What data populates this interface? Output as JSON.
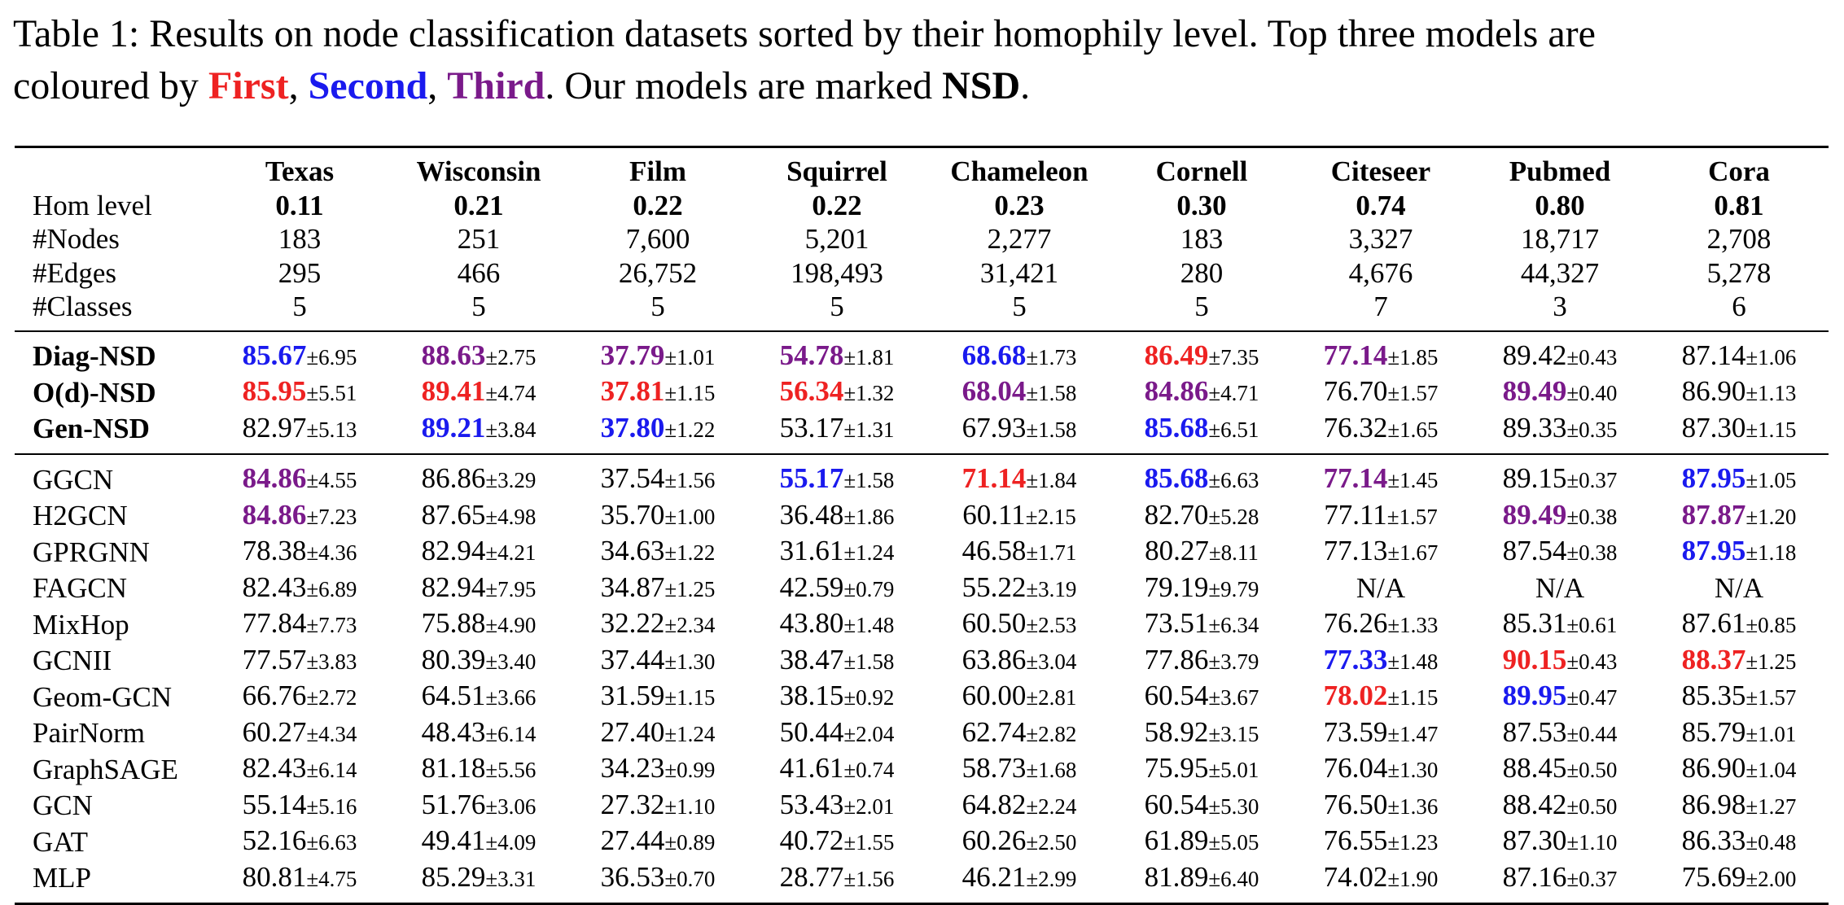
{
  "caption": {
    "line1": "Table 1: Results on node classification datasets sorted by their homophily level. Top three models are",
    "line2_pre": "coloured by ",
    "first": "First",
    "comma1": ", ",
    "second": "Second",
    "comma2": ", ",
    "third": "Third",
    "line2_mid": ". Our models are marked ",
    "nsd": "NSD",
    "line2_end": "."
  },
  "colors": {
    "first": "#ee2222",
    "second": "#1a1aee",
    "third": "#7a1a8a"
  },
  "datasets": [
    "Texas",
    "Wisconsin",
    "Film",
    "Squirrel",
    "Chameleon",
    "Cornell",
    "Citeseer",
    "Pubmed",
    "Cora"
  ],
  "stats": [
    {
      "label": "Hom level",
      "bold": true,
      "values": [
        "0.11",
        "0.21",
        "0.22",
        "0.22",
        "0.23",
        "0.30",
        "0.74",
        "0.80",
        "0.81"
      ]
    },
    {
      "label": "#Nodes",
      "bold": false,
      "values": [
        "183",
        "251",
        "7,600",
        "5,201",
        "2,277",
        "183",
        "3,327",
        "18,717",
        "2,708"
      ]
    },
    {
      "label": "#Edges",
      "bold": false,
      "values": [
        "295",
        "466",
        "26,752",
        "198,493",
        "31,421",
        "280",
        "4,676",
        "44,327",
        "5,278"
      ]
    },
    {
      "label": "#Classes",
      "bold": false,
      "values": [
        "5",
        "5",
        "5",
        "5",
        "5",
        "5",
        "7",
        "3",
        "6"
      ]
    }
  ],
  "nsd_models": [
    {
      "name": "Diag-NSD",
      "cells": [
        {
          "m": "85.67",
          "s": "±6.95",
          "r": "second"
        },
        {
          "m": "88.63",
          "s": "±2.75",
          "r": "third"
        },
        {
          "m": "37.79",
          "s": "±1.01",
          "r": "third"
        },
        {
          "m": "54.78",
          "s": "±1.81",
          "r": "third"
        },
        {
          "m": "68.68",
          "s": "±1.73",
          "r": "second"
        },
        {
          "m": "86.49",
          "s": "±7.35",
          "r": "first"
        },
        {
          "m": "77.14",
          "s": "±1.85",
          "r": "third"
        },
        {
          "m": "89.42",
          "s": "±0.43",
          "r": ""
        },
        {
          "m": "87.14",
          "s": "±1.06",
          "r": ""
        }
      ]
    },
    {
      "name": "O(d)-NSD",
      "cells": [
        {
          "m": "85.95",
          "s": "±5.51",
          "r": "first"
        },
        {
          "m": "89.41",
          "s": "±4.74",
          "r": "first"
        },
        {
          "m": "37.81",
          "s": "±1.15",
          "r": "first"
        },
        {
          "m": "56.34",
          "s": "±1.32",
          "r": "first"
        },
        {
          "m": "68.04",
          "s": "±1.58",
          "r": "third"
        },
        {
          "m": "84.86",
          "s": "±4.71",
          "r": "third"
        },
        {
          "m": "76.70",
          "s": "±1.57",
          "r": ""
        },
        {
          "m": "89.49",
          "s": "±0.40",
          "r": "third"
        },
        {
          "m": "86.90",
          "s": "±1.13",
          "r": ""
        }
      ]
    },
    {
      "name": "Gen-NSD",
      "cells": [
        {
          "m": "82.97",
          "s": "±5.13",
          "r": ""
        },
        {
          "m": "89.21",
          "s": "±3.84",
          "r": "second"
        },
        {
          "m": "37.80",
          "s": "±1.22",
          "r": "second"
        },
        {
          "m": "53.17",
          "s": "±1.31",
          "r": ""
        },
        {
          "m": "67.93",
          "s": "±1.58",
          "r": ""
        },
        {
          "m": "85.68",
          "s": "±6.51",
          "r": "second"
        },
        {
          "m": "76.32",
          "s": "±1.65",
          "r": ""
        },
        {
          "m": "89.33",
          "s": "±0.35",
          "r": ""
        },
        {
          "m": "87.30",
          "s": "±1.15",
          "r": ""
        }
      ]
    }
  ],
  "baselines": [
    {
      "name": "GGCN",
      "cells": [
        {
          "m": "84.86",
          "s": "±4.55",
          "r": "third"
        },
        {
          "m": "86.86",
          "s": "±3.29",
          "r": ""
        },
        {
          "m": "37.54",
          "s": "±1.56",
          "r": ""
        },
        {
          "m": "55.17",
          "s": "±1.58",
          "r": "second"
        },
        {
          "m": "71.14",
          "s": "±1.84",
          "r": "first"
        },
        {
          "m": "85.68",
          "s": "±6.63",
          "r": "second"
        },
        {
          "m": "77.14",
          "s": "±1.45",
          "r": "third"
        },
        {
          "m": "89.15",
          "s": "±0.37",
          "r": ""
        },
        {
          "m": "87.95",
          "s": "±1.05",
          "r": "second"
        }
      ]
    },
    {
      "name": "H2GCN",
      "cells": [
        {
          "m": "84.86",
          "s": "±7.23",
          "r": "third"
        },
        {
          "m": "87.65",
          "s": "±4.98",
          "r": ""
        },
        {
          "m": "35.70",
          "s": "±1.00",
          "r": ""
        },
        {
          "m": "36.48",
          "s": "±1.86",
          "r": ""
        },
        {
          "m": "60.11",
          "s": "±2.15",
          "r": ""
        },
        {
          "m": "82.70",
          "s": "±5.28",
          "r": ""
        },
        {
          "m": "77.11",
          "s": "±1.57",
          "r": ""
        },
        {
          "m": "89.49",
          "s": "±0.38",
          "r": "third"
        },
        {
          "m": "87.87",
          "s": "±1.20",
          "r": "third"
        }
      ]
    },
    {
      "name": "GPRGNN",
      "cells": [
        {
          "m": "78.38",
          "s": "±4.36",
          "r": ""
        },
        {
          "m": "82.94",
          "s": "±4.21",
          "r": ""
        },
        {
          "m": "34.63",
          "s": "±1.22",
          "r": ""
        },
        {
          "m": "31.61",
          "s": "±1.24",
          "r": ""
        },
        {
          "m": "46.58",
          "s": "±1.71",
          "r": ""
        },
        {
          "m": "80.27",
          "s": "±8.11",
          "r": ""
        },
        {
          "m": "77.13",
          "s": "±1.67",
          "r": ""
        },
        {
          "m": "87.54",
          "s": "±0.38",
          "r": ""
        },
        {
          "m": "87.95",
          "s": "±1.18",
          "r": "second"
        }
      ]
    },
    {
      "name": "FAGCN",
      "cells": [
        {
          "m": "82.43",
          "s": "±6.89",
          "r": ""
        },
        {
          "m": "82.94",
          "s": "±7.95",
          "r": ""
        },
        {
          "m": "34.87",
          "s": "±1.25",
          "r": ""
        },
        {
          "m": "42.59",
          "s": "±0.79",
          "r": ""
        },
        {
          "m": "55.22",
          "s": "±3.19",
          "r": ""
        },
        {
          "m": "79.19",
          "s": "±9.79",
          "r": ""
        },
        {
          "m": "N/A",
          "s": "",
          "r": ""
        },
        {
          "m": "N/A",
          "s": "",
          "r": ""
        },
        {
          "m": "N/A",
          "s": "",
          "r": ""
        }
      ]
    },
    {
      "name": "MixHop",
      "cells": [
        {
          "m": "77.84",
          "s": "±7.73",
          "r": ""
        },
        {
          "m": "75.88",
          "s": "±4.90",
          "r": ""
        },
        {
          "m": "32.22",
          "s": "±2.34",
          "r": ""
        },
        {
          "m": "43.80",
          "s": "±1.48",
          "r": ""
        },
        {
          "m": "60.50",
          "s": "±2.53",
          "r": ""
        },
        {
          "m": "73.51",
          "s": "±6.34",
          "r": ""
        },
        {
          "m": "76.26",
          "s": "±1.33",
          "r": ""
        },
        {
          "m": "85.31",
          "s": "±0.61",
          "r": ""
        },
        {
          "m": "87.61",
          "s": "±0.85",
          "r": ""
        }
      ]
    },
    {
      "name": "GCNII",
      "cells": [
        {
          "m": "77.57",
          "s": "±3.83",
          "r": ""
        },
        {
          "m": "80.39",
          "s": "±3.40",
          "r": ""
        },
        {
          "m": "37.44",
          "s": "±1.30",
          "r": ""
        },
        {
          "m": "38.47",
          "s": "±1.58",
          "r": ""
        },
        {
          "m": "63.86",
          "s": "±3.04",
          "r": ""
        },
        {
          "m": "77.86",
          "s": "±3.79",
          "r": ""
        },
        {
          "m": "77.33",
          "s": "±1.48",
          "r": "second"
        },
        {
          "m": "90.15",
          "s": "±0.43",
          "r": "first"
        },
        {
          "m": "88.37",
          "s": "±1.25",
          "r": "first"
        }
      ]
    },
    {
      "name": "Geom-GCN",
      "cells": [
        {
          "m": "66.76",
          "s": "±2.72",
          "r": ""
        },
        {
          "m": "64.51",
          "s": "±3.66",
          "r": ""
        },
        {
          "m": "31.59",
          "s": "±1.15",
          "r": ""
        },
        {
          "m": "38.15",
          "s": "±0.92",
          "r": ""
        },
        {
          "m": "60.00",
          "s": "±2.81",
          "r": ""
        },
        {
          "m": "60.54",
          "s": "±3.67",
          "r": ""
        },
        {
          "m": "78.02",
          "s": "±1.15",
          "r": "first"
        },
        {
          "m": "89.95",
          "s": "±0.47",
          "r": "second"
        },
        {
          "m": "85.35",
          "s": "±1.57",
          "r": ""
        }
      ]
    },
    {
      "name": "PairNorm",
      "cells": [
        {
          "m": "60.27",
          "s": "±4.34",
          "r": ""
        },
        {
          "m": "48.43",
          "s": "±6.14",
          "r": ""
        },
        {
          "m": "27.40",
          "s": "±1.24",
          "r": ""
        },
        {
          "m": "50.44",
          "s": "±2.04",
          "r": ""
        },
        {
          "m": "62.74",
          "s": "±2.82",
          "r": ""
        },
        {
          "m": "58.92",
          "s": "±3.15",
          "r": ""
        },
        {
          "m": "73.59",
          "s": "±1.47",
          "r": ""
        },
        {
          "m": "87.53",
          "s": "±0.44",
          "r": ""
        },
        {
          "m": "85.79",
          "s": "±1.01",
          "r": ""
        }
      ]
    },
    {
      "name": "GraphSAGE",
      "cells": [
        {
          "m": "82.43",
          "s": "±6.14",
          "r": ""
        },
        {
          "m": "81.18",
          "s": "±5.56",
          "r": ""
        },
        {
          "m": "34.23",
          "s": "±0.99",
          "r": ""
        },
        {
          "m": "41.61",
          "s": "±0.74",
          "r": ""
        },
        {
          "m": "58.73",
          "s": "±1.68",
          "r": ""
        },
        {
          "m": "75.95",
          "s": "±5.01",
          "r": ""
        },
        {
          "m": "76.04",
          "s": "±1.30",
          "r": ""
        },
        {
          "m": "88.45",
          "s": "±0.50",
          "r": ""
        },
        {
          "m": "86.90",
          "s": "±1.04",
          "r": ""
        }
      ]
    },
    {
      "name": "GCN",
      "cells": [
        {
          "m": "55.14",
          "s": "±5.16",
          "r": ""
        },
        {
          "m": "51.76",
          "s": "±3.06",
          "r": ""
        },
        {
          "m": "27.32",
          "s": "±1.10",
          "r": ""
        },
        {
          "m": "53.43",
          "s": "±2.01",
          "r": ""
        },
        {
          "m": "64.82",
          "s": "±2.24",
          "r": ""
        },
        {
          "m": "60.54",
          "s": "±5.30",
          "r": ""
        },
        {
          "m": "76.50",
          "s": "±1.36",
          "r": ""
        },
        {
          "m": "88.42",
          "s": "±0.50",
          "r": ""
        },
        {
          "m": "86.98",
          "s": "±1.27",
          "r": ""
        }
      ]
    },
    {
      "name": "GAT",
      "cells": [
        {
          "m": "52.16",
          "s": "±6.63",
          "r": ""
        },
        {
          "m": "49.41",
          "s": "±4.09",
          "r": ""
        },
        {
          "m": "27.44",
          "s": "±0.89",
          "r": ""
        },
        {
          "m": "40.72",
          "s": "±1.55",
          "r": ""
        },
        {
          "m": "60.26",
          "s": "±2.50",
          "r": ""
        },
        {
          "m": "61.89",
          "s": "±5.05",
          "r": ""
        },
        {
          "m": "76.55",
          "s": "±1.23",
          "r": ""
        },
        {
          "m": "87.30",
          "s": "±1.10",
          "r": ""
        },
        {
          "m": "86.33",
          "s": "±0.48",
          "r": ""
        }
      ]
    },
    {
      "name": "MLP",
      "cells": [
        {
          "m": "80.81",
          "s": "±4.75",
          "r": ""
        },
        {
          "m": "85.29",
          "s": "±3.31",
          "r": ""
        },
        {
          "m": "36.53",
          "s": "±0.70",
          "r": ""
        },
        {
          "m": "28.77",
          "s": "±1.56",
          "r": ""
        },
        {
          "m": "46.21",
          "s": "±2.99",
          "r": ""
        },
        {
          "m": "81.89",
          "s": "±6.40",
          "r": ""
        },
        {
          "m": "74.02",
          "s": "±1.90",
          "r": ""
        },
        {
          "m": "87.16",
          "s": "±0.37",
          "r": ""
        },
        {
          "m": "75.69",
          "s": "±2.00",
          "r": ""
        }
      ]
    }
  ]
}
